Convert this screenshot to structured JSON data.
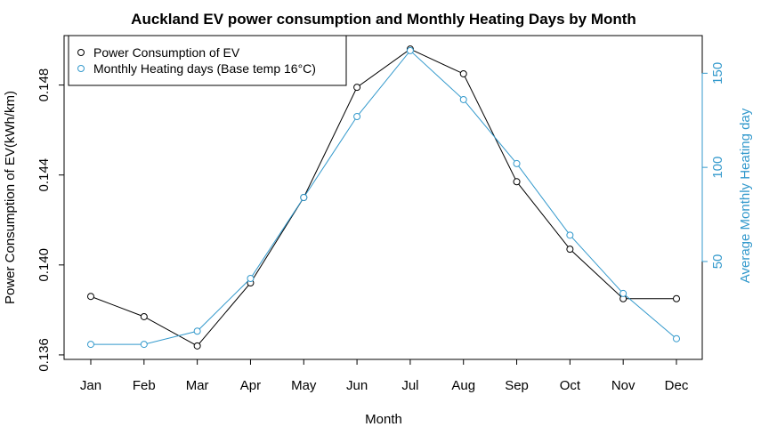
{
  "chart_data": {
    "type": "line",
    "title": "Auckland EV power consumption and Monthly Heating Days by Month",
    "xlabel": "Month",
    "ylabel": "Power Consumption of EV(kWh/km)",
    "y2label": "Average Monthly Heating day",
    "categories": [
      "Jan",
      "Feb",
      "Mar",
      "Apr",
      "May",
      "Jun",
      "Jul",
      "Aug",
      "Sep",
      "Oct",
      "Nov",
      "Dec"
    ],
    "ylim": [
      0.1358,
      0.1502
    ],
    "y2lim": [
      -2,
      170
    ],
    "yticks": [
      0.136,
      0.14,
      0.144,
      0.148
    ],
    "ytick_labels": [
      "0.136",
      "0.140",
      "0.144",
      "0.148"
    ],
    "y2ticks": [
      50,
      100,
      150
    ],
    "y2tick_labels": [
      "50",
      "100",
      "150"
    ],
    "grid": false,
    "legend_position": "top-left",
    "colors": {
      "primary": "#000000",
      "secondary": "#3399cc"
    },
    "series": [
      {
        "name": "Power Consumption of EV",
        "axis": "left",
        "color": "#000000",
        "values": [
          0.1386,
          0.1377,
          0.1364,
          0.1392,
          0.143,
          0.1479,
          0.1496,
          0.1485,
          0.1437,
          0.1407,
          0.1385,
          0.1385
        ]
      },
      {
        "name": "Monthly Heating days (Base temp 16°C)",
        "axis": "right",
        "color": "#3399cc",
        "values": [
          6,
          6,
          13,
          41,
          84,
          127,
          162,
          136,
          102,
          64,
          33,
          9
        ]
      }
    ]
  }
}
